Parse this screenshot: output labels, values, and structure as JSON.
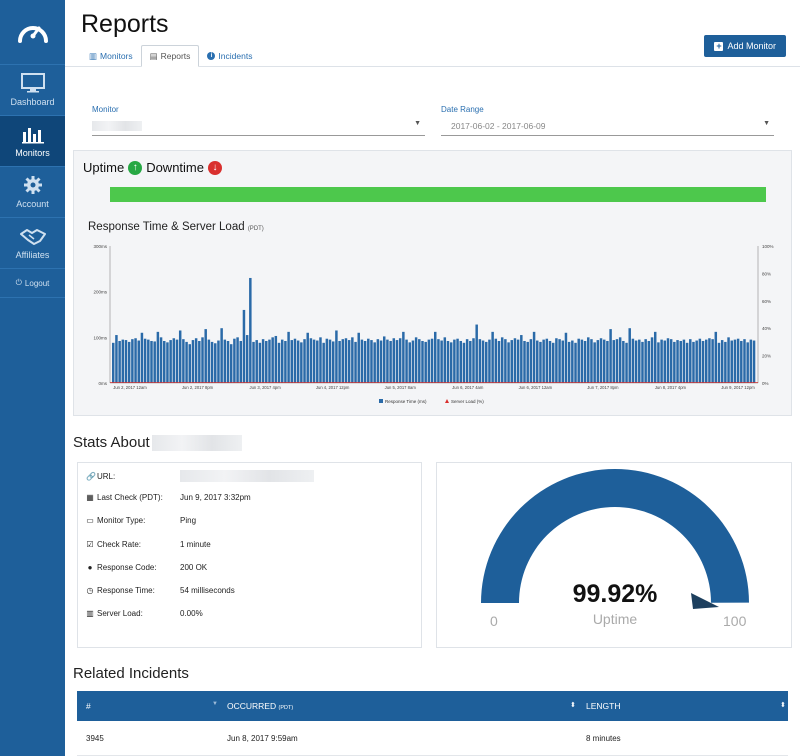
{
  "sidebar": {
    "items": [
      {
        "label": "Dashboard",
        "icon": "monitor-icon"
      },
      {
        "label": "Monitors",
        "icon": "bar-chart-icon",
        "active": true
      },
      {
        "label": "Account",
        "icon": "gear-icon"
      },
      {
        "label": "Affiliates",
        "icon": "handshake-icon"
      }
    ],
    "logout": "Logout"
  },
  "header": {
    "title": "Reports",
    "tabs": [
      {
        "label": "Monitors",
        "icon": "bar-chart-icon"
      },
      {
        "label": "Reports",
        "icon": "document-icon",
        "active": true
      },
      {
        "label": "Incidents",
        "icon": "info-icon"
      }
    ],
    "add_button": "Add Monitor"
  },
  "filters": {
    "monitor_label": "Monitor",
    "date_label": "Date Range",
    "date_value": "2017-06-02 - 2017-06-09"
  },
  "status": {
    "uptime_label": "Uptime",
    "downtime_label": "Downtime"
  },
  "chart_data": {
    "type": "bar",
    "title": "Response Time & Server Load",
    "title_suffix": "(PDT)",
    "y_left_ticks": [
      "0ms",
      "100ms",
      "200ms",
      "300ms"
    ],
    "y_right_ticks": [
      "0%",
      "20%",
      "40%",
      "60%",
      "80%",
      "100%"
    ],
    "ylim_left": [
      0,
      300
    ],
    "ylim_right": [
      0,
      100
    ],
    "x_ticks": [
      "Jun 2, 2017 12am",
      "Jun 2, 2017 8pm",
      "Jun 3, 2017 4pm",
      "Jun 4, 2017 12pm",
      "Jun 5, 2017 8am",
      "Jun 6, 2017 4am",
      "Jun 6, 2017 12am",
      "Jun 7, 2017 8pm",
      "Jun 8, 2017 4pm",
      "Jun 9, 2017 12pm"
    ],
    "legend": [
      "Response Time (ms)",
      "Server Load (%)"
    ],
    "series": [
      {
        "name": "Response Time (ms)",
        "color": "#2a6aa8",
        "values": [
          88,
          105,
          92,
          95,
          94,
          90,
          96,
          98,
          93,
          110,
          97,
          95,
          92,
          91,
          112,
          100,
          92,
          89,
          94,
          98,
          95,
          115,
          96,
          90,
          85,
          94,
          98,
          92,
          100,
          118,
          95,
          90,
          87,
          93,
          120,
          95,
          92,
          85,
          97,
          100,
          92,
          160,
          105,
          230,
          90,
          94,
          88,
          96,
          92,
          95,
          100,
          103,
          88,
          95,
          92,
          112,
          94,
          97,
          93,
          89,
          96,
          110,
          98,
          95,
          93,
          100,
          88,
          97,
          95,
          91,
          115,
          92,
          96,
          98,
          94,
          100,
          90,
          110,
          95,
          92,
          97,
          94,
          89,
          96,
          93,
          102,
          95,
          92,
          98,
          94,
          98,
          112,
          95,
          89,
          93,
          100,
          96,
          92,
          90,
          95,
          97,
          112,
          96,
          93,
          100,
          92,
          89,
          95,
          97,
          92,
          88,
          96,
          92,
          98,
          128,
          96,
          93,
          90,
          95,
          112,
          97,
          92,
          100,
          96,
          89,
          94,
          98,
          95,
          105,
          92,
          90,
          96,
          112,
          93,
          90,
          95,
          97,
          92,
          88,
          98,
          96,
          93,
          110,
          90,
          93,
          88,
          97,
          95,
          92,
          100,
          96,
          89,
          94,
          98,
          95,
          92,
          118,
          94,
          96,
          100,
          92,
          88,
          120,
          97,
          93,
          95,
          90,
          96,
          92,
          100,
          112,
          89,
          95,
          93,
          98,
          96,
          90,
          94,
          92,
          95,
          88,
          96,
          90,
          93,
          97,
          92,
          95,
          98,
          96,
          112,
          88,
          94,
          90,
          100,
          93,
          95,
          97,
          92,
          96,
          89,
          95,
          93
        ]
      },
      {
        "name": "Server Load (%)",
        "color": "#d9302e",
        "values": [
          0
        ]
      }
    ]
  },
  "stats": {
    "title": "Stats About",
    "rows": [
      {
        "label": "URL:",
        "value": "",
        "icon": "link-icon"
      },
      {
        "label": "Last Check (PDT):",
        "value": "Jun 9, 2017 3:32pm",
        "icon": "calendar-icon"
      },
      {
        "label": "Monitor Type:",
        "value": "Ping",
        "icon": "monitor-icon"
      },
      {
        "label": "Check Rate:",
        "value": "1 minute",
        "icon": "checkbox-icon"
      },
      {
        "label": "Response Code:",
        "value": "200 OK",
        "icon": "globe-icon"
      },
      {
        "label": "Response Time:",
        "value": "54 milliseconds",
        "icon": "clock-icon"
      },
      {
        "label": "Server Load:",
        "value": "0.00%",
        "icon": "bar-chart-icon"
      }
    ]
  },
  "gauge": {
    "value": "99.92%",
    "fraction": 0.9992,
    "label": "Uptime",
    "min": "0",
    "max": "100",
    "color": "#1e5f9a"
  },
  "incidents": {
    "title": "Related Incidents",
    "columns": [
      {
        "label": "#"
      },
      {
        "label": "OCCURRED",
        "suffix": "(PDT)"
      },
      {
        "label": "LENGTH"
      }
    ],
    "rows": [
      {
        "id": "3945",
        "occurred": "Jun 8, 2017 9:59am",
        "length": "8 minutes"
      }
    ]
  }
}
